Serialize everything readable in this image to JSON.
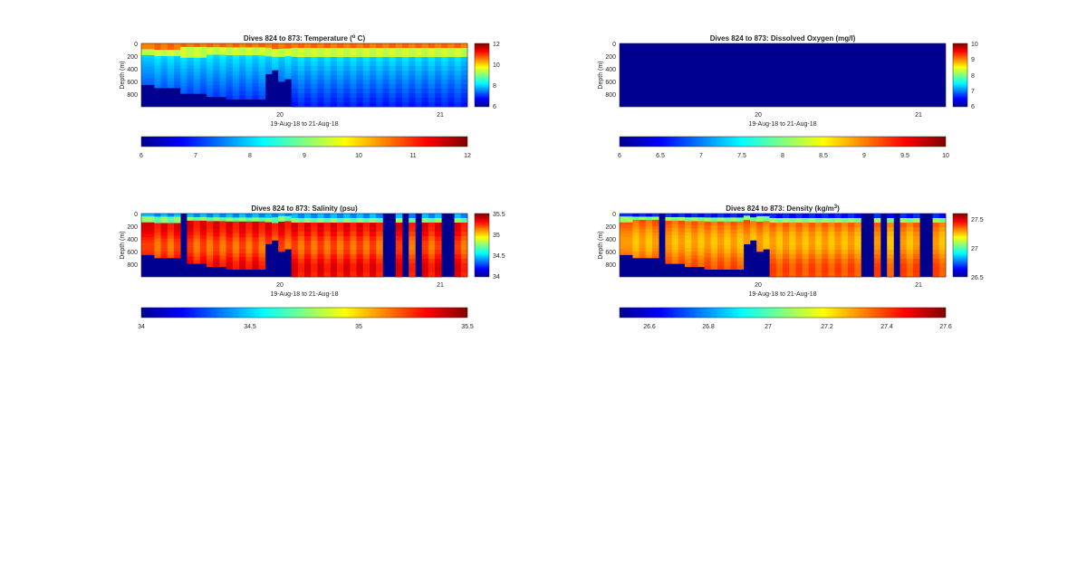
{
  "figure": {
    "background": "#ffffff"
  },
  "chart_data": [
    {
      "type": "heatmap",
      "title": "Dives 824 to 873: Temperature (° C)",
      "title_parts": {
        "pre": "Dives 824 to 873: Temperature (",
        "sup": "o",
        "post": " C)"
      },
      "xlabel": "19-Aug-18 to 21-Aug-18",
      "ylabel": "Depth (m)",
      "x_ticks": [
        "20",
        "21"
      ],
      "y_ticks": [
        "0",
        "200",
        "400",
        "600",
        "800"
      ],
      "ylim": [
        0,
        1000
      ],
      "y_reversed": true,
      "side_colorbar_ticks": [
        "12",
        "10",
        "8",
        "6"
      ],
      "bottom_colorbar_ticks": [
        "6",
        "7",
        "8",
        "9",
        "10",
        "11",
        "12"
      ],
      "clim": [
        6,
        12
      ],
      "colormap": "jet",
      "dives": [
        {
          "value": 9.0,
          "max_depth": 650
        },
        {
          "value": 9.0,
          "max_depth": 650
        },
        {
          "value": 9.2,
          "max_depth": 700
        },
        {
          "value": 9.0,
          "max_depth": 700
        },
        {
          "value": 9.2,
          "max_depth": 700
        },
        {
          "value": 9.0,
          "max_depth": 700
        },
        {
          "value": 9.2,
          "max_depth": 790
        },
        {
          "value": 9.0,
          "max_depth": 790
        },
        {
          "value": 9.2,
          "max_depth": 790
        },
        {
          "value": 9.0,
          "max_depth": 790
        },
        {
          "value": 9.2,
          "max_depth": 840
        },
        {
          "value": 9.0,
          "max_depth": 840
        },
        {
          "value": 9.2,
          "max_depth": 840
        },
        {
          "value": 9.0,
          "max_depth": 880
        },
        {
          "value": 9.2,
          "max_depth": 880
        },
        {
          "value": 9.0,
          "max_depth": 880
        },
        {
          "value": 9.2,
          "max_depth": 880
        },
        {
          "value": 9.0,
          "max_depth": 880
        },
        {
          "value": 9.2,
          "max_depth": 880
        },
        {
          "value": 9.0,
          "max_depth": 480
        },
        {
          "value": 9.2,
          "max_depth": 420
        },
        {
          "value": 9.0,
          "max_depth": 600
        },
        {
          "value": 9.2,
          "max_depth": 560
        },
        {
          "value": 9.0,
          "max_depth": 1000
        },
        {
          "value": 9.2,
          "max_depth": 1000
        },
        {
          "value": 9.0,
          "max_depth": 1000
        },
        {
          "value": 9.2,
          "max_depth": 1000
        },
        {
          "value": 9.0,
          "max_depth": 1000
        },
        {
          "value": 9.2,
          "max_depth": 1000
        },
        {
          "value": 9.0,
          "max_depth": 1000
        },
        {
          "value": 9.2,
          "max_depth": 1000
        },
        {
          "value": 9.0,
          "max_depth": 1000
        },
        {
          "value": 9.2,
          "max_depth": 1000
        },
        {
          "value": 9.0,
          "max_depth": 1000
        },
        {
          "value": 9.2,
          "max_depth": 1000
        },
        {
          "value": 9.0,
          "max_depth": 1000
        },
        {
          "value": 9.2,
          "max_depth": 1000
        },
        {
          "value": 9.0,
          "max_depth": 1000
        },
        {
          "value": 9.2,
          "max_depth": 1000
        },
        {
          "value": 9.0,
          "max_depth": 1000
        },
        {
          "value": 9.2,
          "max_depth": 1000
        },
        {
          "value": 9.0,
          "max_depth": 1000
        },
        {
          "value": 9.2,
          "max_depth": 1000
        },
        {
          "value": 9.0,
          "max_depth": 1000
        },
        {
          "value": 9.2,
          "max_depth": 1000
        },
        {
          "value": 9.0,
          "max_depth": 1000
        },
        {
          "value": 9.2,
          "max_depth": 1000
        },
        {
          "value": 9.0,
          "max_depth": 1000
        },
        {
          "value": 9.2,
          "max_depth": 1000
        },
        {
          "value": 9.0,
          "max_depth": 1000
        }
      ]
    },
    {
      "type": "heatmap",
      "title": "Dives 824 to 873: Dissolved Oxygen (mg/l)",
      "title_parts": {
        "pre": "Dives 824 to 873: Dissolved Oxygen (mg/l)",
        "sup": "",
        "post": ""
      },
      "xlabel": "19-Aug-18 to 21-Aug-18",
      "ylabel": "Depth (m)",
      "x_ticks": [
        "20",
        "21"
      ],
      "y_ticks": [
        "0",
        "200",
        "400",
        "600",
        "800"
      ],
      "ylim": [
        0,
        1000
      ],
      "y_reversed": true,
      "side_colorbar_ticks": [
        "10",
        "9",
        "8",
        "7",
        "6"
      ],
      "bottom_colorbar_ticks": [
        "6",
        "6.5",
        "7",
        "7.5",
        "8",
        "8.5",
        "9",
        "9.5",
        "10"
      ],
      "clim": [
        6,
        10
      ],
      "colormap": "jet",
      "uniform_value": 6,
      "dives": []
    },
    {
      "type": "heatmap",
      "title": "Dives 824 to 873: Salinity (psu)",
      "title_parts": {
        "pre": "Dives 824 to 873: Salinity (psu)",
        "sup": "",
        "post": ""
      },
      "xlabel": "19-Aug-18 to 21-Aug-18",
      "ylabel": "Depth (m)",
      "x_ticks": [
        "20",
        "21"
      ],
      "y_ticks": [
        "0",
        "200",
        "400",
        "600",
        "800"
      ],
      "ylim": [
        0,
        1000
      ],
      "y_reversed": true,
      "side_colorbar_ticks": [
        "35.5",
        "35",
        "34.5",
        "34"
      ],
      "bottom_colorbar_ticks": [
        "34",
        "34.5",
        "35",
        "35.5"
      ],
      "clim": [
        34,
        35.5
      ],
      "colormap": "jet",
      "dives": [
        {
          "value": 35.3,
          "max_depth": 650
        },
        {
          "value": 35.3,
          "max_depth": 650
        },
        {
          "value": 35.2,
          "max_depth": 700
        },
        {
          "value": 35.3,
          "max_depth": 700
        },
        {
          "value": 35.2,
          "max_depth": 700
        },
        {
          "value": 35.3,
          "max_depth": 700
        },
        {
          "value": 34.0,
          "max_depth": 0
        },
        {
          "value": 35.3,
          "max_depth": 790
        },
        {
          "value": 35.2,
          "max_depth": 790
        },
        {
          "value": 35.3,
          "max_depth": 790
        },
        {
          "value": 35.2,
          "max_depth": 840
        },
        {
          "value": 35.3,
          "max_depth": 840
        },
        {
          "value": 35.2,
          "max_depth": 840
        },
        {
          "value": 35.3,
          "max_depth": 880
        },
        {
          "value": 35.2,
          "max_depth": 880
        },
        {
          "value": 35.3,
          "max_depth": 880
        },
        {
          "value": 35.2,
          "max_depth": 880
        },
        {
          "value": 35.3,
          "max_depth": 880
        },
        {
          "value": 35.2,
          "max_depth": 880
        },
        {
          "value": 35.3,
          "max_depth": 480
        },
        {
          "value": 35.2,
          "max_depth": 420
        },
        {
          "value": 35.3,
          "max_depth": 600
        },
        {
          "value": 35.2,
          "max_depth": 560
        },
        {
          "value": 35.3,
          "max_depth": 1000
        },
        {
          "value": 35.2,
          "max_depth": 1000
        },
        {
          "value": 35.3,
          "max_depth": 1000
        },
        {
          "value": 35.2,
          "max_depth": 1000
        },
        {
          "value": 35.3,
          "max_depth": 1000
        },
        {
          "value": 35.2,
          "max_depth": 1000
        },
        {
          "value": 35.3,
          "max_depth": 1000
        },
        {
          "value": 35.2,
          "max_depth": 1000
        },
        {
          "value": 35.3,
          "max_depth": 1000
        },
        {
          "value": 35.2,
          "max_depth": 1000
        },
        {
          "value": 35.3,
          "max_depth": 1000
        },
        {
          "value": 35.2,
          "max_depth": 1000
        },
        {
          "value": 35.3,
          "max_depth": 1000
        },
        {
          "value": 35.2,
          "max_depth": 1000
        },
        {
          "value": 34.0,
          "max_depth": 0
        },
        {
          "value": 34.0,
          "max_depth": 0
        },
        {
          "value": 35.3,
          "max_depth": 1000
        },
        {
          "value": 34.0,
          "max_depth": 0
        },
        {
          "value": 35.2,
          "max_depth": 1000
        },
        {
          "value": 34.0,
          "max_depth": 0
        },
        {
          "value": 35.3,
          "max_depth": 1000
        },
        {
          "value": 35.2,
          "max_depth": 1000
        },
        {
          "value": 35.3,
          "max_depth": 1000
        },
        {
          "value": 34.0,
          "max_depth": 0
        },
        {
          "value": 34.0,
          "max_depth": 0
        },
        {
          "value": 35.3,
          "max_depth": 1000
        },
        {
          "value": 35.2,
          "max_depth": 1000
        }
      ]
    },
    {
      "type": "heatmap",
      "title": "Dives 824 to 873: Density (kg/m³)",
      "title_parts": {
        "pre": "Dives 824 to 873: Density (kg/m",
        "sup": "3",
        "post": ")"
      },
      "xlabel": "19-Aug-18 to 21-Aug-18",
      "ylabel": "Depth (m)",
      "x_ticks": [
        "20",
        "21"
      ],
      "y_ticks": [
        "0",
        "200",
        "400",
        "600",
        "800"
      ],
      "ylim": [
        0,
        1000
      ],
      "y_reversed": true,
      "side_colorbar_ticks": [
        "27.5",
        "27",
        "26.5"
      ],
      "bottom_colorbar_ticks": [
        "26.6",
        "26.8",
        "27",
        "27.2",
        "27.4",
        "27.6"
      ],
      "clim": [
        26.5,
        27.6
      ],
      "colormap": "jet",
      "dives": [
        {
          "value": 27.35,
          "max_depth": 650
        },
        {
          "value": 27.35,
          "max_depth": 650
        },
        {
          "value": 27.3,
          "max_depth": 700
        },
        {
          "value": 27.35,
          "max_depth": 700
        },
        {
          "value": 27.3,
          "max_depth": 700
        },
        {
          "value": 27.35,
          "max_depth": 700
        },
        {
          "value": 26.5,
          "max_depth": 0
        },
        {
          "value": 27.35,
          "max_depth": 790
        },
        {
          "value": 27.3,
          "max_depth": 790
        },
        {
          "value": 27.35,
          "max_depth": 790
        },
        {
          "value": 27.3,
          "max_depth": 840
        },
        {
          "value": 27.35,
          "max_depth": 840
        },
        {
          "value": 27.3,
          "max_depth": 840
        },
        {
          "value": 27.35,
          "max_depth": 880
        },
        {
          "value": 27.3,
          "max_depth": 880
        },
        {
          "value": 27.35,
          "max_depth": 880
        },
        {
          "value": 27.3,
          "max_depth": 880
        },
        {
          "value": 27.35,
          "max_depth": 880
        },
        {
          "value": 27.3,
          "max_depth": 880
        },
        {
          "value": 27.35,
          "max_depth": 480
        },
        {
          "value": 27.3,
          "max_depth": 420
        },
        {
          "value": 27.35,
          "max_depth": 600
        },
        {
          "value": 27.3,
          "max_depth": 560
        },
        {
          "value": 27.35,
          "max_depth": 1000
        },
        {
          "value": 27.3,
          "max_depth": 1000
        },
        {
          "value": 27.35,
          "max_depth": 1000
        },
        {
          "value": 27.3,
          "max_depth": 1000
        },
        {
          "value": 27.35,
          "max_depth": 1000
        },
        {
          "value": 27.3,
          "max_depth": 1000
        },
        {
          "value": 27.35,
          "max_depth": 1000
        },
        {
          "value": 27.3,
          "max_depth": 1000
        },
        {
          "value": 27.35,
          "max_depth": 1000
        },
        {
          "value": 27.3,
          "max_depth": 1000
        },
        {
          "value": 27.35,
          "max_depth": 1000
        },
        {
          "value": 27.3,
          "max_depth": 1000
        },
        {
          "value": 27.35,
          "max_depth": 1000
        },
        {
          "value": 27.3,
          "max_depth": 1000
        },
        {
          "value": 26.5,
          "max_depth": 0
        },
        {
          "value": 26.5,
          "max_depth": 0
        },
        {
          "value": 27.35,
          "max_depth": 1000
        },
        {
          "value": 26.5,
          "max_depth": 0
        },
        {
          "value": 27.3,
          "max_depth": 1000
        },
        {
          "value": 26.5,
          "max_depth": 0
        },
        {
          "value": 27.35,
          "max_depth": 1000
        },
        {
          "value": 27.3,
          "max_depth": 1000
        },
        {
          "value": 27.35,
          "max_depth": 1000
        },
        {
          "value": 26.5,
          "max_depth": 0
        },
        {
          "value": 26.5,
          "max_depth": 0
        },
        {
          "value": 27.35,
          "max_depth": 1000
        },
        {
          "value": 27.3,
          "max_depth": 1000
        }
      ]
    }
  ]
}
